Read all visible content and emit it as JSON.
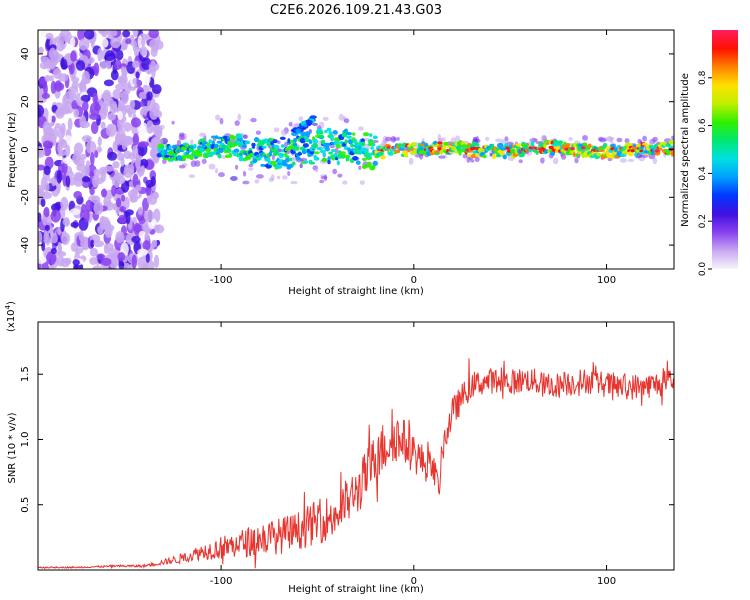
{
  "title": "C2E6.2026.109.21.43.G03",
  "colors": {
    "snr_line": "#e8342e",
    "axis": "#000000",
    "background": "#ffffff"
  },
  "chart_data": [
    {
      "type": "heatmap",
      "name": "spectrogram",
      "title": "C2E6.2026.109.21.43.G03",
      "xlabel": "Height of straight line (km)",
      "ylabel": "Frequency (Hz)",
      "xlim": [
        -195,
        135
      ],
      "ylim": [
        -50,
        50
      ],
      "xticks": [
        -100,
        0,
        100
      ],
      "xtick_labels": [
        "-100",
        "0",
        "100"
      ],
      "yticks": [
        -40,
        -20,
        0,
        20,
        40
      ],
      "ytick_labels": [
        "-40",
        "-20",
        "0",
        "20",
        "40"
      ],
      "colorbar": {
        "label": "Normalized spectral amplitude",
        "range": [
          0.0,
          1.0
        ],
        "ticks": [
          0.0,
          0.2,
          0.4,
          0.6,
          0.8
        ],
        "tick_labels": [
          "0.0",
          "0.2",
          "0.4",
          "0.6",
          "0.8"
        ],
        "colormap": [
          "#f8f4fc",
          "#c8a8f0",
          "#8840f0",
          "#4010e0",
          "#0038ff",
          "#00a0ff",
          "#00e0e0",
          "#00e870",
          "#30f000",
          "#c0f000",
          "#ffe000",
          "#ff8000",
          "#ff1000",
          "#ff2060"
        ]
      },
      "features": {
        "noise_region_x": [
          -195,
          -132
        ],
        "signal_start_x": -132,
        "carrier_freq_hz": 0,
        "upper_branch": {
          "x": [
            -62,
            -52
          ],
          "freq_hz": [
            7,
            13
          ]
        }
      }
    },
    {
      "type": "line",
      "name": "snr",
      "xlabel": "Height of straight line (km)",
      "ylabel": "SNR (10 * v/v)",
      "multiplier_label": "(x10",
      "multiplier_exp": "4",
      "xlim": [
        -195,
        135
      ],
      "ylim": [
        0,
        1.9
      ],
      "xticks": [
        -100,
        0,
        100
      ],
      "xtick_labels": [
        "-100",
        "0",
        "100"
      ],
      "yticks": [
        0.5,
        1.0,
        1.5
      ],
      "ytick_labels": [
        "0.5",
        "1.0",
        "1.5"
      ],
      "series": [
        {
          "name": "SNR",
          "x": [
            -195,
            -175,
            -155,
            -140,
            -130,
            -120,
            -110,
            -100,
            -90,
            -80,
            -70,
            -60,
            -50,
            -40,
            -35,
            -30,
            -25,
            -20,
            -15,
            -10,
            -5,
            0,
            5,
            10,
            13,
            15,
            20,
            25,
            30,
            40,
            50,
            60,
            70,
            80,
            90,
            100,
            110,
            120,
            130,
            135
          ],
          "values": [
            0.02,
            0.02,
            0.03,
            0.03,
            0.06,
            0.09,
            0.14,
            0.17,
            0.2,
            0.24,
            0.26,
            0.3,
            0.37,
            0.42,
            0.52,
            0.58,
            0.72,
            0.85,
            0.95,
            1.03,
            0.98,
            0.9,
            0.82,
            0.78,
            0.62,
            0.95,
            1.2,
            1.32,
            1.42,
            1.45,
            1.44,
            1.46,
            1.4,
            1.43,
            1.45,
            1.42,
            1.4,
            1.41,
            1.43,
            1.44
          ],
          "noise_amplitude": [
            0.005,
            0.005,
            0.008,
            0.01,
            0.02,
            0.04,
            0.06,
            0.09,
            0.11,
            0.13,
            0.14,
            0.15,
            0.17,
            0.18,
            0.18,
            0.19,
            0.2,
            0.2,
            0.21,
            0.2,
            0.18,
            0.16,
            0.14,
            0.12,
            0.1,
            0.12,
            0.12,
            0.11,
            0.1,
            0.1,
            0.1,
            0.1,
            0.1,
            0.1,
            0.1,
            0.1,
            0.1,
            0.1,
            0.1,
            0.1
          ]
        }
      ]
    }
  ]
}
